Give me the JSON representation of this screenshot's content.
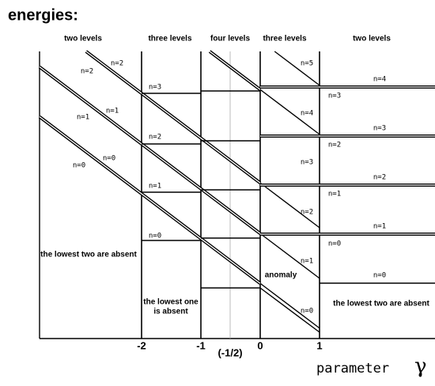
{
  "title": "energies:",
  "regions": [
    "two levels",
    "three levels",
    "four levels",
    "three levels",
    "two levels"
  ],
  "level_labels": [
    "n=2",
    "n=2",
    "n=1",
    "n=1",
    "n=0",
    "n=0",
    "n=3",
    "n=2",
    "n=1",
    "n=0",
    "n=5",
    "n=4",
    "n=3",
    "n=2",
    "n=1",
    "n=0",
    "n=4",
    "n=3",
    "n=3",
    "n=2",
    "n=2",
    "n=1",
    "n=1",
    "n=0",
    "n=0"
  ],
  "notes": [
    "the lowest two are absent",
    "the lowest one",
    "is absent",
    "anomaly",
    "the lowest two are absent"
  ],
  "x_ticks": [
    "-2",
    "-1",
    "(-1/2)",
    "0",
    "1"
  ],
  "axis_label": {
    "text": "parameter",
    "symbol": "γ"
  }
}
